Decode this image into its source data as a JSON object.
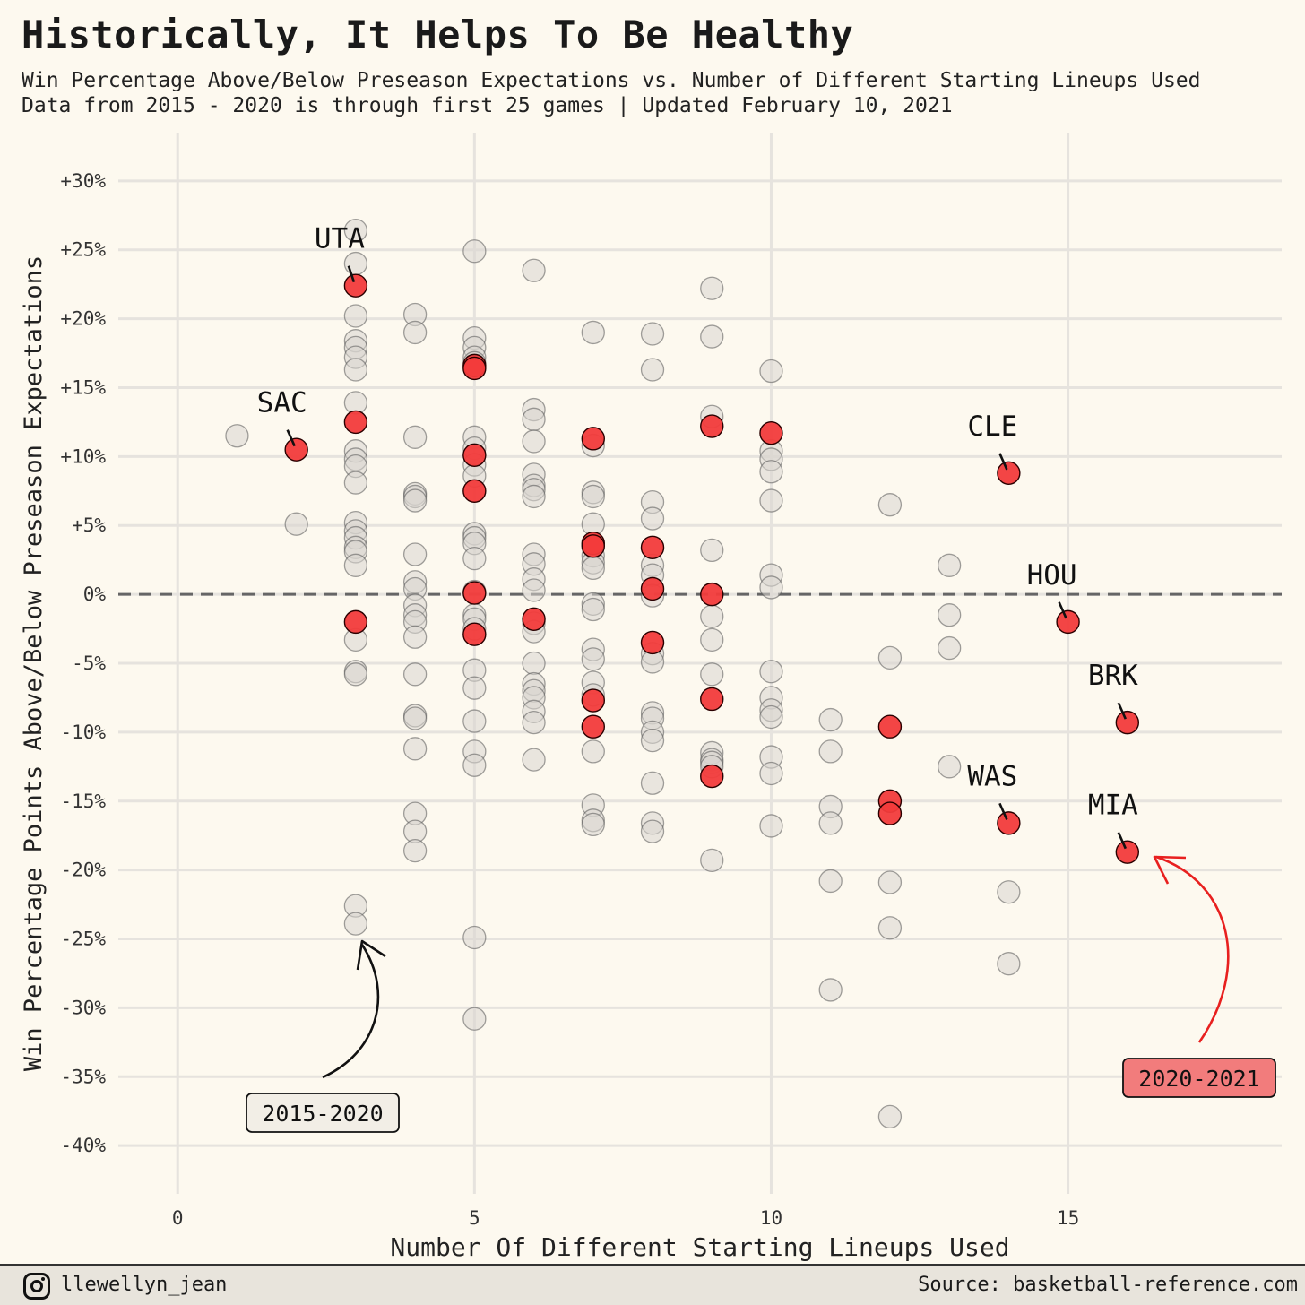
{
  "title": "Historically, It Helps To Be Healthy",
  "subtitle_line1": "Win Percentage Above/Below Preseason Expectations vs. Number of Different Starting Lineups Used",
  "subtitle_line2": "Data from 2015 - 2020 is through first 25 games | Updated February 10, 2021",
  "footer": {
    "icon": "instagram-icon",
    "handle": "llewellyn_jean",
    "source": "Source: basketball-reference.com"
  },
  "chart_data": {
    "type": "scatter",
    "xlabel": "Number Of Different Starting Lineups Used",
    "ylabel": "Win Percentage Points Above/Below Preseason Expectations",
    "xlim": [
      -1,
      18.6
    ],
    "ylim": [
      -43.5,
      33.5
    ],
    "x_ticks": [
      0,
      5,
      10,
      15
    ],
    "x_tick_labels": [
      "0",
      "5",
      "10",
      "15"
    ],
    "y_ticks": [
      30,
      25,
      20,
      15,
      10,
      5,
      0,
      -5,
      -10,
      -15,
      -20,
      -25,
      -30,
      -35,
      -40
    ],
    "y_tick_labels": [
      "+30%",
      "+25%",
      "+20%",
      "+15%",
      "+10%",
      "+5%",
      "0%",
      "-5%",
      "-10%",
      "-15%",
      "-20%",
      "-25%",
      "-30%",
      "-35%",
      "-40%"
    ],
    "reference_line": 0,
    "grid": true,
    "colors": {
      "historical": "#d9d6d0",
      "current": "#f23b3b",
      "annotation_red": "#e8201f",
      "label_red_bg": "#f27c7c"
    },
    "series": [
      {
        "name": "2015-2020",
        "points": [
          [
            1,
            11.5
          ],
          [
            2,
            5.1
          ],
          [
            3,
            26.4
          ],
          [
            3,
            24
          ],
          [
            3,
            20.2
          ],
          [
            3,
            18.4
          ],
          [
            3,
            17.9
          ],
          [
            3,
            17.2
          ],
          [
            3,
            16.3
          ],
          [
            3,
            13.9
          ],
          [
            3,
            10.4
          ],
          [
            3,
            9.8
          ],
          [
            3,
            9.3
          ],
          [
            3,
            8.1
          ],
          [
            3,
            5.2
          ],
          [
            3,
            4.6
          ],
          [
            3,
            4.1
          ],
          [
            3,
            3.4
          ],
          [
            3,
            3.1
          ],
          [
            3,
            2.1
          ],
          [
            3,
            -3.3
          ],
          [
            3,
            -5.6
          ],
          [
            3,
            -5.8
          ],
          [
            3,
            -22.6
          ],
          [
            3,
            -23.9
          ],
          [
            4,
            20.3
          ],
          [
            4,
            19
          ],
          [
            4,
            11.4
          ],
          [
            4,
            7.3
          ],
          [
            4,
            7.1
          ],
          [
            4,
            6.8
          ],
          [
            4,
            2.9
          ],
          [
            4,
            0.9
          ],
          [
            4,
            0.4
          ],
          [
            4,
            -0.8
          ],
          [
            4,
            -1.5
          ],
          [
            4,
            -2
          ],
          [
            4,
            -3.1
          ],
          [
            4,
            -5.8
          ],
          [
            4,
            -8.8
          ],
          [
            4,
            -9
          ],
          [
            4,
            -11.2
          ],
          [
            4,
            -15.9
          ],
          [
            4,
            -17.2
          ],
          [
            4,
            -18.6
          ],
          [
            5,
            24.9
          ],
          [
            5,
            18.6
          ],
          [
            5,
            17.9
          ],
          [
            5,
            17.2
          ],
          [
            5,
            16.8
          ],
          [
            5,
            11.4
          ],
          [
            5,
            10.6
          ],
          [
            5,
            9.4
          ],
          [
            5,
            8.6
          ],
          [
            5,
            4.4
          ],
          [
            5,
            4.1
          ],
          [
            5,
            3.7
          ],
          [
            5,
            2.6
          ],
          [
            5,
            0.2
          ],
          [
            5,
            -1.5
          ],
          [
            5,
            -1.8
          ],
          [
            5,
            -2.5
          ],
          [
            5,
            -5.5
          ],
          [
            5,
            -6.8
          ],
          [
            5,
            -9.2
          ],
          [
            5,
            -11.4
          ],
          [
            5,
            -12.4
          ],
          [
            5,
            -24.9
          ],
          [
            5,
            -30.8
          ],
          [
            6,
            23.5
          ],
          [
            6,
            13.4
          ],
          [
            6,
            12.7
          ],
          [
            6,
            11.1
          ],
          [
            6,
            8.7
          ],
          [
            6,
            7.9
          ],
          [
            6,
            7.6
          ],
          [
            6,
            7.1
          ],
          [
            6,
            2.9
          ],
          [
            6,
            2.2
          ],
          [
            6,
            1.1
          ],
          [
            6,
            0.3
          ],
          [
            6,
            -2.1
          ],
          [
            6,
            -2.7
          ],
          [
            6,
            -5
          ],
          [
            6,
            -6.5
          ],
          [
            6,
            -7
          ],
          [
            6,
            -7.5
          ],
          [
            6,
            -8.5
          ],
          [
            6,
            -9.3
          ],
          [
            6,
            -12
          ],
          [
            7,
            19
          ],
          [
            7,
            10.8
          ],
          [
            7,
            7.4
          ],
          [
            7,
            7.1
          ],
          [
            7,
            5.1
          ],
          [
            7,
            3.6
          ],
          [
            7,
            2.8
          ],
          [
            7,
            2.3
          ],
          [
            7,
            1.9
          ],
          [
            7,
            -0.7
          ],
          [
            7,
            -1.1
          ],
          [
            7,
            -4
          ],
          [
            7,
            -4.7
          ],
          [
            7,
            -6.4
          ],
          [
            7,
            -7.3
          ],
          [
            7,
            -11.4
          ],
          [
            7,
            -15.3
          ],
          [
            7,
            -16.4
          ],
          [
            7,
            -16.7
          ],
          [
            8,
            18.9
          ],
          [
            8,
            16.3
          ],
          [
            8,
            6.7
          ],
          [
            8,
            5.5
          ],
          [
            8,
            2.1
          ],
          [
            8,
            1.4
          ],
          [
            8,
            -0.1
          ],
          [
            8,
            -4.3
          ],
          [
            8,
            -4.9
          ],
          [
            8,
            -8.6
          ],
          [
            8,
            -9
          ],
          [
            8,
            -10
          ],
          [
            8,
            -10.6
          ],
          [
            8,
            -13.7
          ],
          [
            8,
            -16.6
          ],
          [
            8,
            -17.2
          ],
          [
            9,
            22.2
          ],
          [
            9,
            18.7
          ],
          [
            9,
            12.9
          ],
          [
            9,
            3.2
          ],
          [
            9,
            -1.6
          ],
          [
            9,
            -3.3
          ],
          [
            9,
            -5.8
          ],
          [
            9,
            -11.5
          ],
          [
            9,
            -12
          ],
          [
            9,
            -12.2
          ],
          [
            9,
            -12.5
          ],
          [
            9,
            -19.3
          ],
          [
            10,
            16.2
          ],
          [
            10,
            10.4
          ],
          [
            10,
            9.8
          ],
          [
            10,
            8.9
          ],
          [
            10,
            6.8
          ],
          [
            10,
            1.4
          ],
          [
            10,
            0.5
          ],
          [
            10,
            -5.6
          ],
          [
            10,
            -7.5
          ],
          [
            10,
            -8.4
          ],
          [
            10,
            -8.9
          ],
          [
            10,
            -11.8
          ],
          [
            10,
            -13
          ],
          [
            10,
            -16.8
          ],
          [
            11,
            -9.1
          ],
          [
            11,
            -11.4
          ],
          [
            11,
            -15.4
          ],
          [
            11,
            -16.6
          ],
          [
            11,
            -20.8
          ],
          [
            11,
            -28.7
          ],
          [
            12,
            6.5
          ],
          [
            12,
            -4.6
          ],
          [
            12,
            -20.9
          ],
          [
            12,
            -24.2
          ],
          [
            12,
            -37.9
          ],
          [
            13,
            2.1
          ],
          [
            13,
            -1.5
          ],
          [
            13,
            -3.9
          ],
          [
            13,
            -12.5
          ],
          [
            14,
            -21.6
          ],
          [
            14,
            -26.8
          ]
        ]
      },
      {
        "name": "2020-2021",
        "points": [
          [
            2,
            10.5,
            "SAC"
          ],
          [
            3,
            22.4,
            "UTA"
          ],
          [
            3,
            12.5
          ],
          [
            3,
            -2
          ],
          [
            5,
            16.6
          ],
          [
            5,
            16.4
          ],
          [
            5,
            10.1
          ],
          [
            5,
            7.5
          ],
          [
            5,
            0.1
          ],
          [
            5,
            -2.9
          ],
          [
            6,
            -1.8
          ],
          [
            7,
            11.3
          ],
          [
            7,
            3.7
          ],
          [
            7,
            3.5
          ],
          [
            7,
            -7.7
          ],
          [
            7,
            -9.6
          ],
          [
            8,
            3.4
          ],
          [
            8,
            0.4
          ],
          [
            8,
            -3.5
          ],
          [
            9,
            12.2
          ],
          [
            9,
            0
          ],
          [
            9,
            -7.6
          ],
          [
            9,
            -13.2
          ],
          [
            10,
            11.7
          ],
          [
            12,
            -9.6
          ],
          [
            12,
            -15
          ],
          [
            12,
            -15.9
          ],
          [
            14,
            8.8,
            "CLE"
          ],
          [
            15,
            -2,
            "HOU"
          ],
          [
            16,
            -9.3,
            "BRK"
          ],
          [
            14,
            -16.6,
            "WAS"
          ],
          [
            16,
            -18.7,
            "MIA"
          ]
        ]
      }
    ],
    "team_labels": [
      "SAC",
      "UTA",
      "CLE",
      "HOU",
      "BRK",
      "WAS",
      "MIA"
    ],
    "callouts": [
      {
        "text": "2015-2020",
        "color": "#f2eee6"
      },
      {
        "text": "2020-2021",
        "color": "#f27c7c"
      }
    ]
  }
}
